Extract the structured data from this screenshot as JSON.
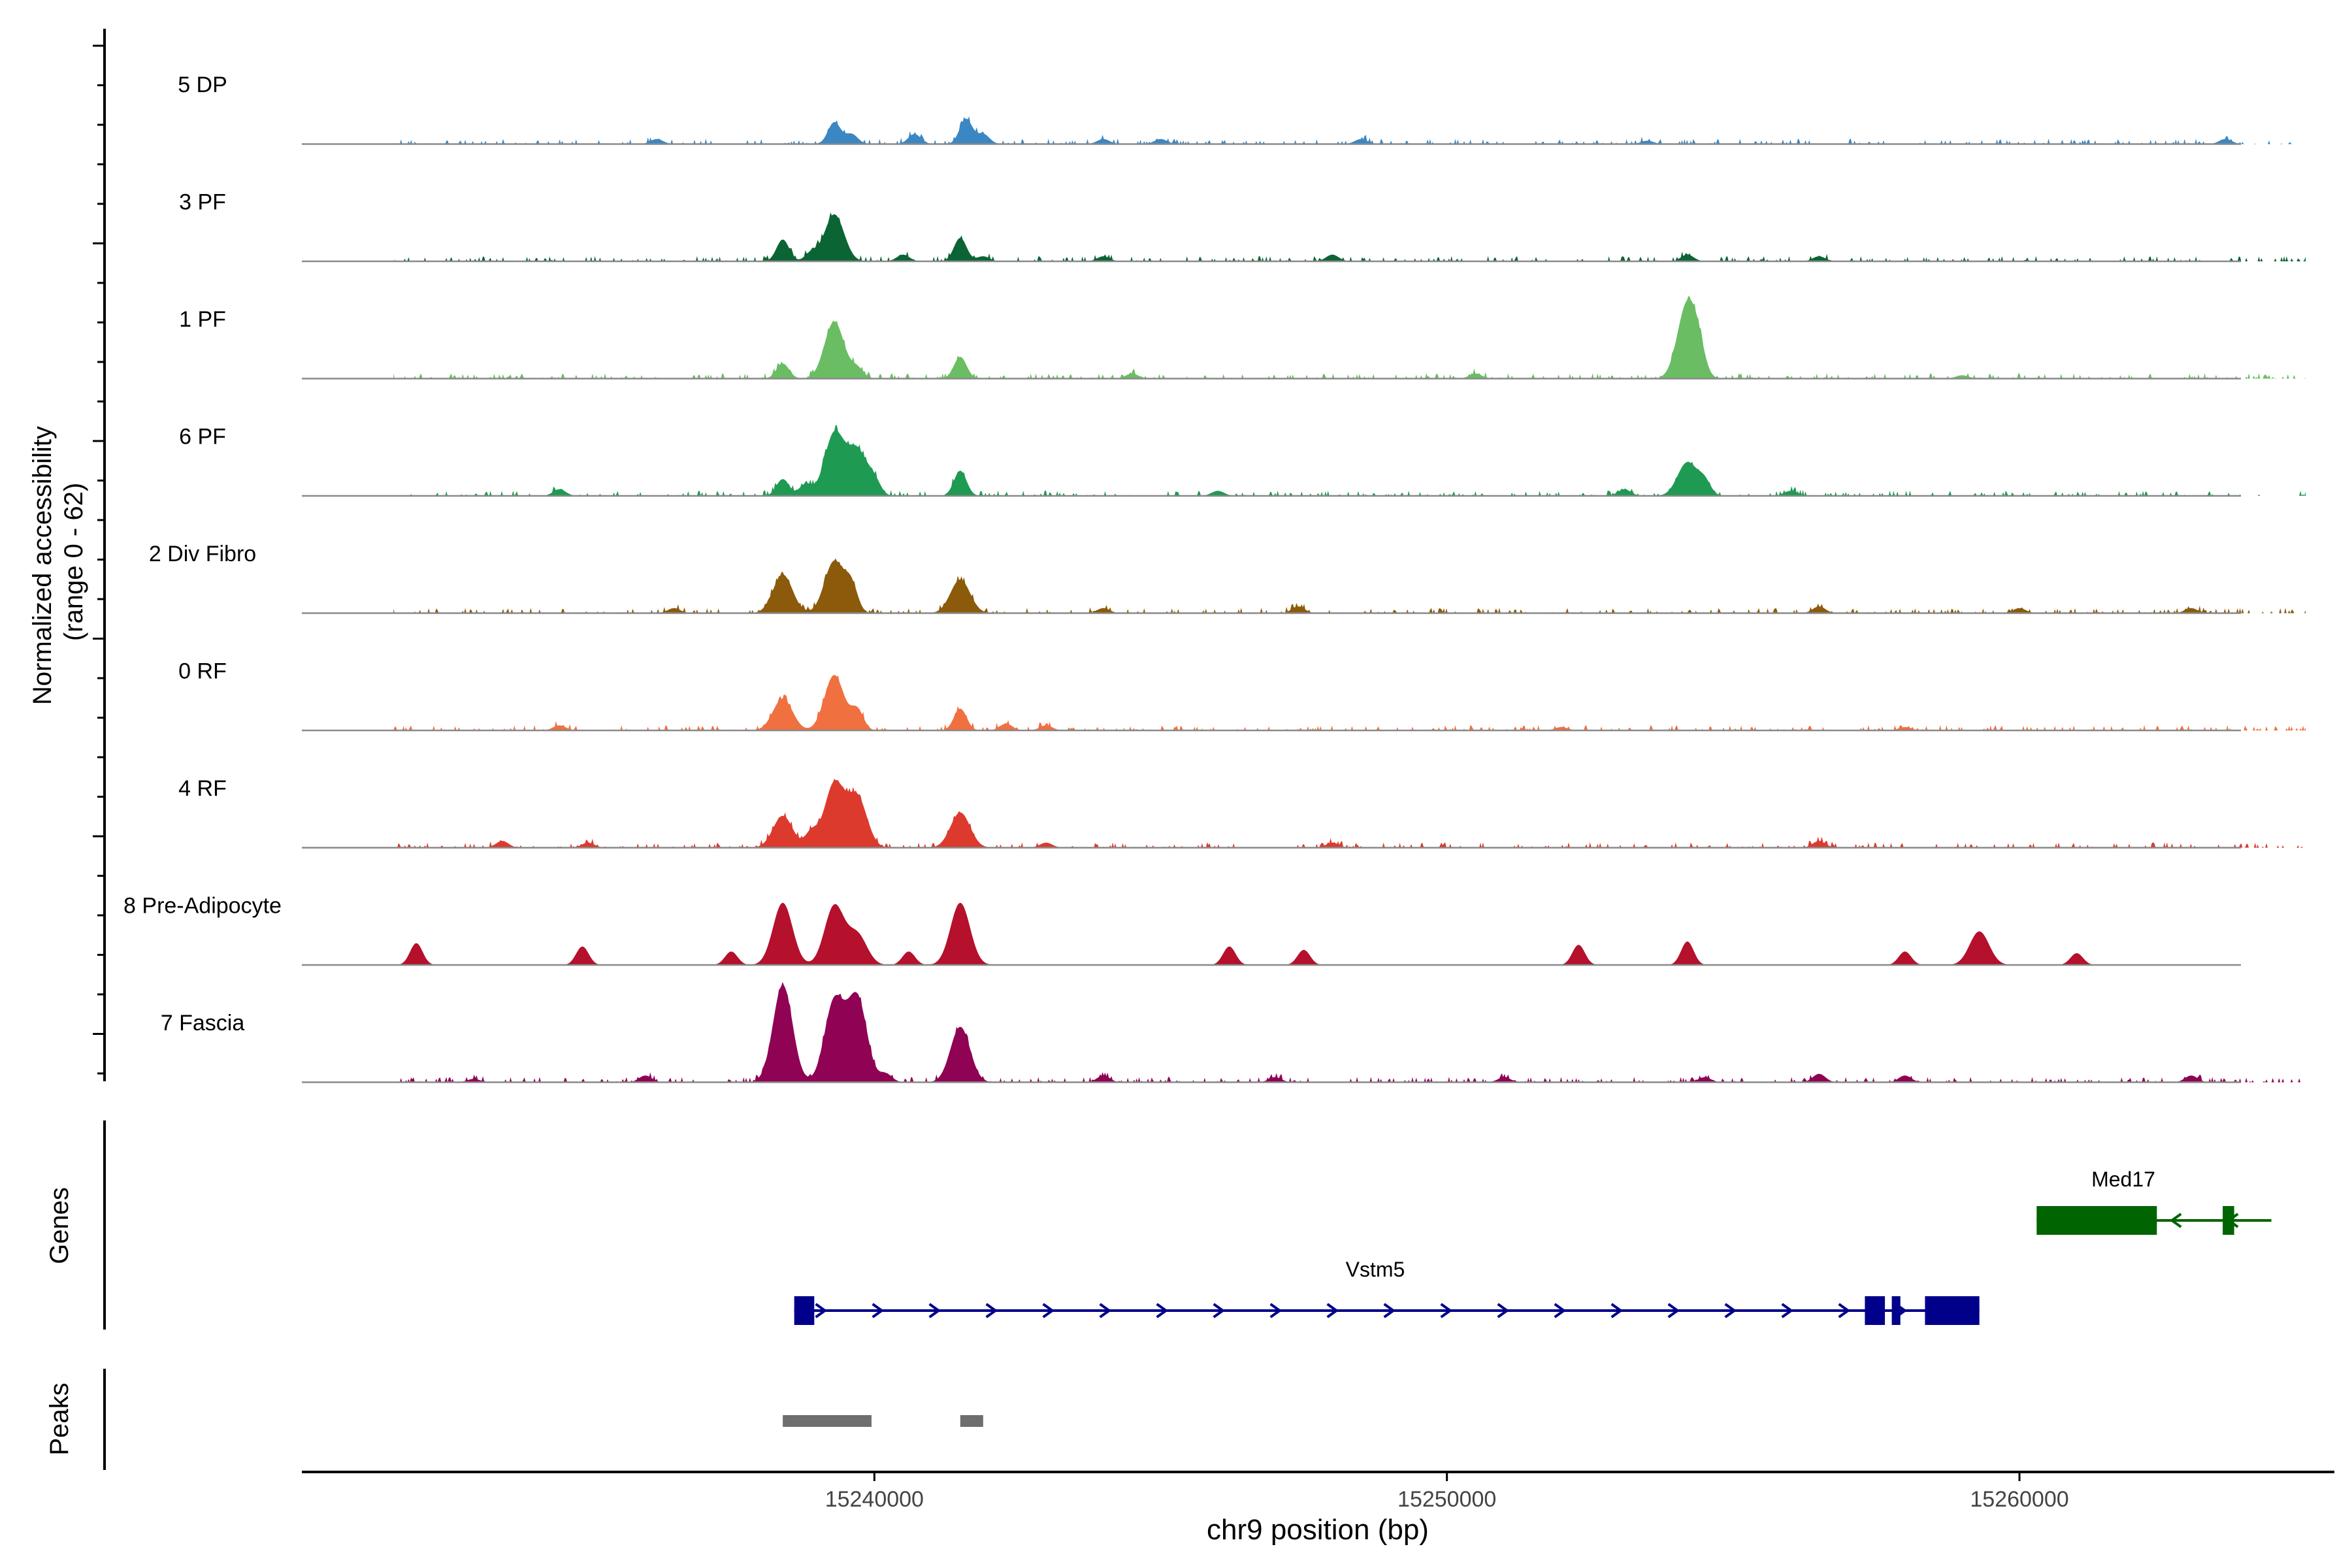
{
  "chart_data": {
    "type": "coverage",
    "chromosome": "chr9",
    "x_range": [
      15230000,
      15265500
    ],
    "xlabel": "chr9 position (bp)",
    "x_ticks": [
      15240000,
      15250000,
      15260000
    ],
    "x_tick_labels": [
      "15240000",
      "15250000",
      "15260000"
    ],
    "ylabel_line1": "Normalized accessibility",
    "ylabel_line2": "(range 0 - 62)",
    "ylim": [
      0,
      62
    ],
    "tracks": [
      {
        "name": "5 DP",
        "color": "#3a87c4",
        "peaks": [
          [
            15239300,
            13
          ],
          [
            15239600,
            6
          ],
          [
            15240700,
            6
          ],
          [
            15241600,
            15
          ],
          [
            15241900,
            6
          ],
          [
            15236200,
            3
          ],
          [
            15244000,
            3
          ],
          [
            15245000,
            3
          ],
          [
            15248500,
            3
          ],
          [
            15253500,
            2
          ],
          [
            15263600,
            3
          ]
        ],
        "baseline": 2
      },
      {
        "name": "3 PF",
        "color": "#0b6434",
        "peaks": [
          [
            15238400,
            13
          ],
          [
            15239300,
            28
          ],
          [
            15238900,
            5
          ],
          [
            15241500,
            14
          ],
          [
            15240500,
            4
          ],
          [
            15241900,
            3
          ],
          [
            15244000,
            3
          ],
          [
            15248000,
            4
          ],
          [
            15254200,
            4
          ],
          [
            15256500,
            3
          ]
        ],
        "baseline": 2
      },
      {
        "name": "1 PF",
        "color": "#6abd63",
        "peaks": [
          [
            15238400,
            9
          ],
          [
            15239300,
            34
          ],
          [
            15239700,
            6
          ],
          [
            15241500,
            13
          ],
          [
            15254200,
            45
          ],
          [
            15254400,
            10
          ],
          [
            15244500,
            3
          ],
          [
            15250500,
            3
          ],
          [
            15259000,
            2
          ]
        ],
        "baseline": 2
      },
      {
        "name": "6 PF",
        "color": "#1f9a52",
        "peaks": [
          [
            15238400,
            10
          ],
          [
            15238800,
            7
          ],
          [
            15239300,
            37
          ],
          [
            15239700,
            27
          ],
          [
            15240000,
            8
          ],
          [
            15241500,
            15
          ],
          [
            15254200,
            20
          ],
          [
            15254500,
            8
          ],
          [
            15253100,
            4
          ],
          [
            15234500,
            4
          ],
          [
            15246000,
            3
          ],
          [
            15256000,
            3
          ]
        ],
        "baseline": 2
      },
      {
        "name": "2 Div Fibro",
        "color": "#8b5a0a",
        "peaks": [
          [
            15238400,
            23
          ],
          [
            15239300,
            31
          ],
          [
            15239600,
            15
          ],
          [
            15241500,
            20
          ],
          [
            15236500,
            3
          ],
          [
            15244000,
            3
          ],
          [
            15247400,
            4
          ],
          [
            15256500,
            4
          ],
          [
            15260000,
            3
          ],
          [
            15263000,
            3
          ]
        ],
        "baseline": 2
      },
      {
        "name": "0 RF",
        "color": "#f07040",
        "peaks": [
          [
            15238400,
            19
          ],
          [
            15239300,
            33
          ],
          [
            15239700,
            12
          ],
          [
            15241500,
            13
          ],
          [
            15242300,
            4
          ],
          [
            15234500,
            3
          ],
          [
            15243000,
            3
          ],
          [
            15252000,
            2
          ],
          [
            15258000,
            2
          ]
        ],
        "baseline": 2
      },
      {
        "name": "4 RF",
        "color": "#dd3a2e",
        "peaks": [
          [
            15238400,
            19
          ],
          [
            15238900,
            9
          ],
          [
            15239300,
            38
          ],
          [
            15239700,
            30
          ],
          [
            15241500,
            21
          ],
          [
            15233500,
            4
          ],
          [
            15235000,
            3
          ],
          [
            15243000,
            3
          ],
          [
            15248000,
            3
          ],
          [
            15256500,
            4
          ]
        ],
        "baseline": 2
      },
      {
        "name": "8 Pre-Adipocyte",
        "color": "#b5102c",
        "peaks": [
          [
            15238400,
            37
          ],
          [
            15239300,
            35
          ],
          [
            15239700,
            18
          ],
          [
            15241500,
            37
          ],
          [
            15232000,
            13
          ],
          [
            15234900,
            11
          ],
          [
            15237500,
            8
          ],
          [
            15240600,
            8
          ],
          [
            15246200,
            11
          ],
          [
            15247500,
            9
          ],
          [
            15252300,
            12
          ],
          [
            15254200,
            14
          ],
          [
            15258000,
            8
          ],
          [
            15259300,
            20
          ],
          [
            15261000,
            7
          ]
        ],
        "baseline": 0
      },
      {
        "name": "7 Fascia",
        "color": "#8f0254",
        "peaks": [
          [
            15238400,
            58
          ],
          [
            15239300,
            48
          ],
          [
            15239700,
            50
          ],
          [
            15241500,
            33
          ],
          [
            15240200,
            5
          ],
          [
            15236000,
            4
          ],
          [
            15233000,
            2
          ],
          [
            15244000,
            4
          ],
          [
            15247000,
            3
          ],
          [
            15251000,
            3
          ],
          [
            15254500,
            3
          ],
          [
            15256500,
            5
          ],
          [
            15258000,
            4
          ],
          [
            15263000,
            4
          ]
        ],
        "baseline": 2
      }
    ],
    "genes": [
      {
        "name": "Vstm5",
        "color": "#00008b",
        "start": 15238600,
        "end": 15259300,
        "strand": "+",
        "exons": [
          [
            15238600,
            15238950
          ],
          [
            15257300,
            15257650
          ],
          [
            15257770,
            15257920
          ],
          [
            15258350,
            15259300
          ]
        ]
      },
      {
        "name": "Med17",
        "color": "#006400",
        "start": 15260300,
        "end": 15264400,
        "strand": "-",
        "exons": [
          [
            15260300,
            15262400
          ],
          [
            15263550,
            15263750
          ]
        ]
      }
    ],
    "genes_label": "Genes",
    "peaks_label": "Peaks",
    "peak_regions": [
      [
        15238400,
        15239950
      ],
      [
        15241500,
        15241900
      ]
    ],
    "peak_color": "#6e6e6e"
  }
}
